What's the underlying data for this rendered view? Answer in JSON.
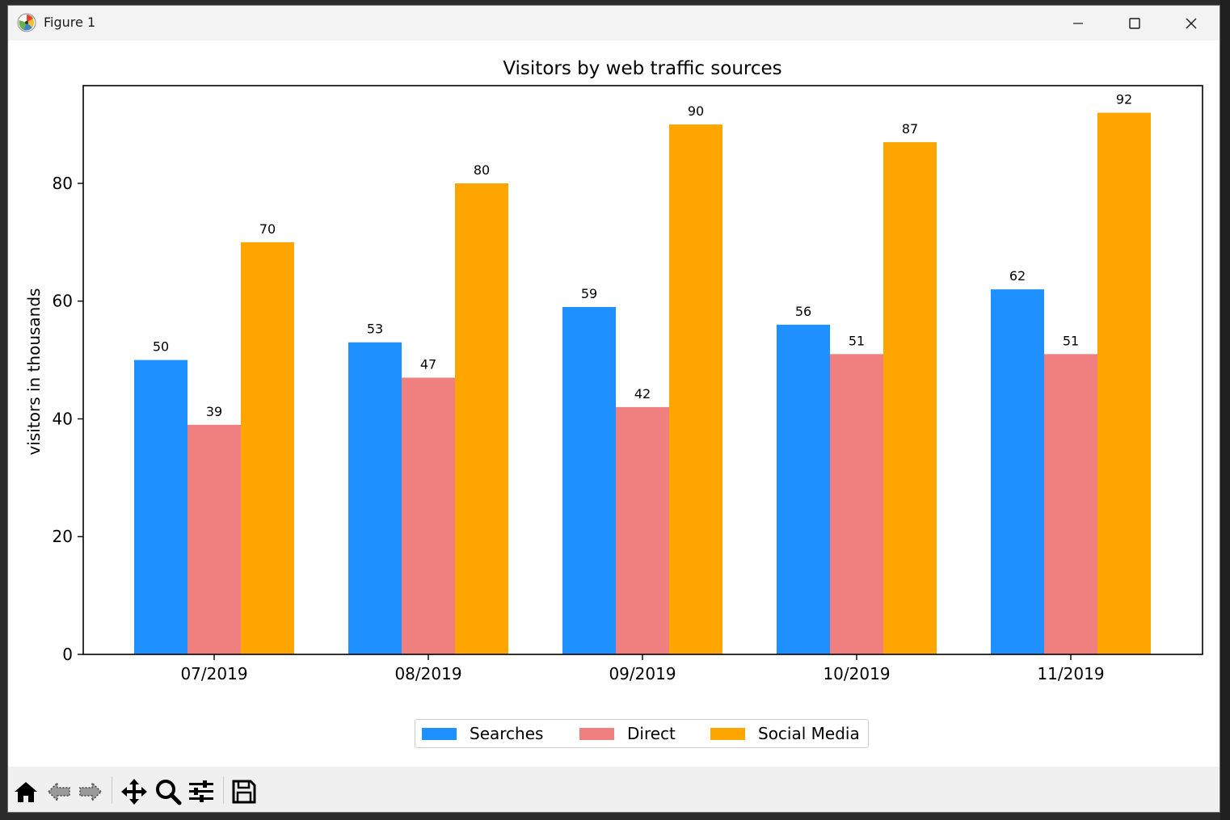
{
  "window": {
    "title": "Figure 1"
  },
  "colors": {
    "searches": "#1e90ff",
    "direct": "#f08080",
    "social": "#ffa500"
  },
  "chart_data": {
    "type": "bar",
    "title": "Visitors by web traffic sources",
    "xlabel": "",
    "ylabel": "visitors in thousands",
    "categories": [
      "07/2019",
      "08/2019",
      "09/2019",
      "10/2019",
      "11/2019"
    ],
    "series": [
      {
        "name": "Searches",
        "color": "#1e90ff",
        "values": [
          50,
          53,
          59,
          56,
          62
        ]
      },
      {
        "name": "Direct",
        "color": "#f08080",
        "values": [
          39,
          47,
          42,
          51,
          51
        ]
      },
      {
        "name": "Social Media",
        "color": "#ffa500",
        "values": [
          70,
          80,
          90,
          87,
          92
        ]
      }
    ],
    "ylim": [
      0,
      96.6
    ],
    "yticks": [
      0,
      20,
      40,
      60,
      80
    ],
    "data_labels": true,
    "grid": false,
    "legend_placement": "bottom-center"
  },
  "toolbar": {
    "buttons": [
      "home-icon",
      "back-icon",
      "forward-icon",
      "pan-icon",
      "zoom-icon",
      "configure-subplots-icon",
      "save-icon"
    ]
  }
}
